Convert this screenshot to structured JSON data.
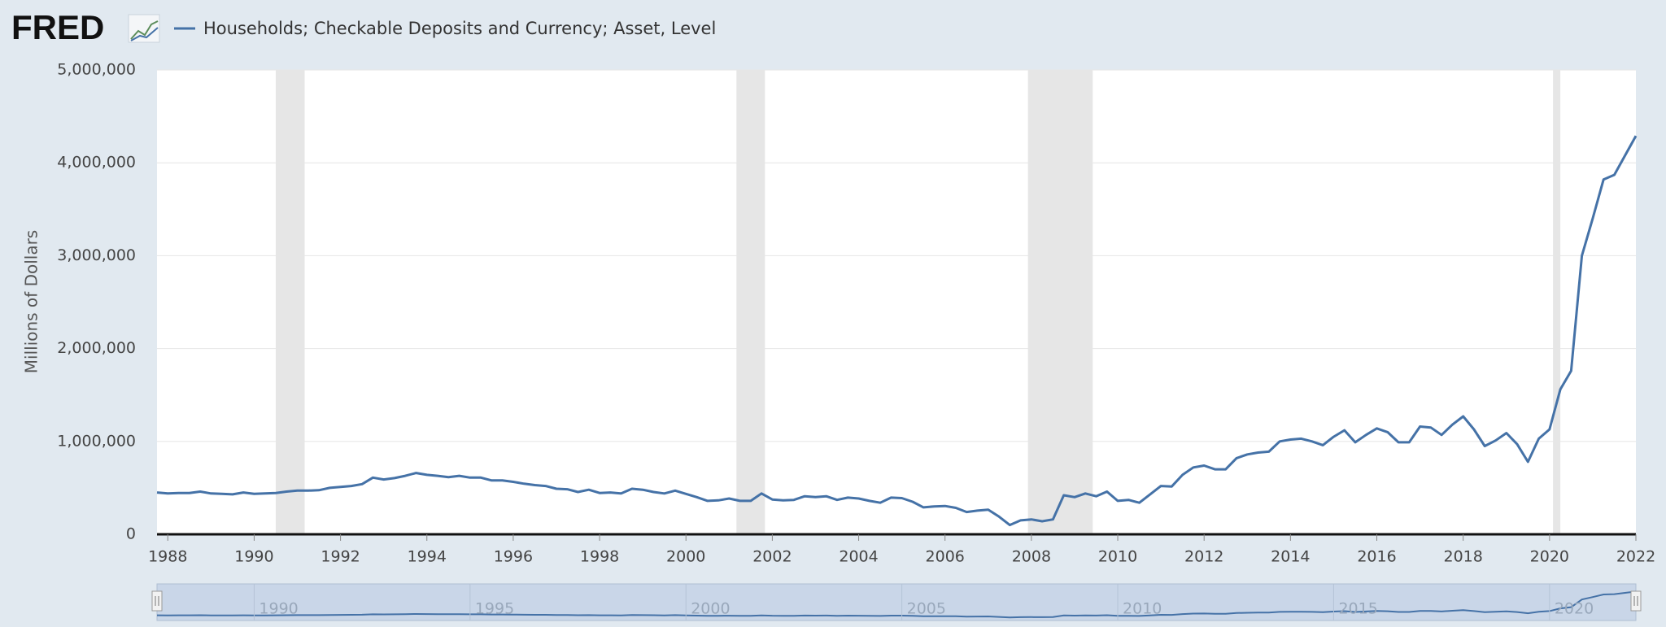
{
  "chart_data": {
    "type": "line",
    "logo": "FRED",
    "y_label": "Millions of Dollars",
    "series": [
      {
        "name": "Households; Checkable Deposits and Currency; Asset, Level",
        "color": "#4572a7",
        "values": [
          450000,
          440000,
          445000,
          445000,
          460000,
          440000,
          435000,
          430000,
          450000,
          435000,
          440000,
          445000,
          460000,
          470000,
          470000,
          475000,
          500000,
          510000,
          520000,
          540000,
          610000,
          590000,
          605000,
          630000,
          660000,
          640000,
          630000,
          615000,
          630000,
          610000,
          610000,
          580000,
          580000,
          565000,
          545000,
          530000,
          520000,
          490000,
          485000,
          455000,
          480000,
          445000,
          450000,
          440000,
          490000,
          480000,
          455000,
          440000,
          470000,
          435000,
          400000,
          360000,
          365000,
          385000,
          360000,
          360000,
          440000,
          375000,
          365000,
          370000,
          410000,
          400000,
          410000,
          370000,
          395000,
          385000,
          360000,
          340000,
          395000,
          390000,
          350000,
          290000,
          300000,
          305000,
          285000,
          240000,
          255000,
          265000,
          190000,
          100000,
          150000,
          160000,
          140000,
          160000,
          420000,
          400000,
          440000,
          410000,
          460000,
          360000,
          370000,
          340000,
          430000,
          520000,
          515000,
          640000,
          720000,
          740000,
          700000,
          700000,
          820000,
          860000,
          880000,
          890000,
          1000000,
          1020000,
          1030000,
          1000000,
          960000,
          1050000,
          1120000,
          990000,
          1070000,
          1140000,
          1100000,
          990000,
          990000,
          1160000,
          1150000,
          1070000,
          1180000,
          1270000,
          1130000,
          950000,
          1010000,
          1090000,
          970000,
          780000,
          1030000,
          1130000,
          1560000,
          1760000,
          3000000,
          3400000,
          3820000,
          3870000,
          4080000,
          4290000
        ]
      }
    ],
    "x": [
      1987.75,
      1988,
      1988.25,
      1988.5,
      1988.75,
      1989,
      1989.25,
      1989.5,
      1989.75,
      1990,
      1990.25,
      1990.5,
      1990.75,
      1991,
      1991.25,
      1991.5,
      1991.75,
      1992,
      1992.25,
      1992.5,
      1992.75,
      1993,
      1993.25,
      1993.5,
      1993.75,
      1994,
      1994.25,
      1994.5,
      1994.75,
      1995,
      1995.25,
      1995.5,
      1995.75,
      1996,
      1996.25,
      1996.5,
      1996.75,
      1997,
      1997.25,
      1997.5,
      1997.75,
      1998,
      1998.25,
      1998.5,
      1998.75,
      1999,
      1999.25,
      1999.5,
      1999.75,
      2000,
      2000.25,
      2000.5,
      2000.75,
      2001,
      2001.25,
      2001.5,
      2001.75,
      2002,
      2002.25,
      2002.5,
      2002.75,
      2003,
      2003.25,
      2003.5,
      2003.75,
      2004,
      2004.25,
      2004.5,
      2004.75,
      2005,
      2005.25,
      2005.5,
      2005.75,
      2006,
      2006.25,
      2006.5,
      2006.75,
      2007,
      2007.25,
      2007.5,
      2007.75,
      2008,
      2008.25,
      2008.5,
      2008.75,
      2009,
      2009.25,
      2009.5,
      2009.75,
      2010,
      2010.25,
      2010.5,
      2010.75,
      2011,
      2011.25,
      2011.5,
      2011.75,
      2012,
      2012.25,
      2012.5,
      2012.75,
      2013,
      2013.25,
      2013.5,
      2013.75,
      2014,
      2014.25,
      2014.5,
      2014.75,
      2015,
      2015.25,
      2015.5,
      2015.75,
      2016,
      2016.25,
      2016.5,
      2016.75,
      2017,
      2017.25,
      2017.5,
      2017.75,
      2018,
      2018.25,
      2018.5,
      2018.75,
      2019,
      2019.25,
      2019.5,
      2019.75,
      2020,
      2020.25,
      2020.5,
      2020.75,
      2021,
      2021.25,
      2021.5,
      2021.75,
      2022
    ],
    "xlim": [
      1987.75,
      2022
    ],
    "xticks": [
      1988,
      1990,
      1992,
      1994,
      1996,
      1998,
      2000,
      2002,
      2004,
      2006,
      2008,
      2010,
      2012,
      2014,
      2016,
      2018,
      2020,
      2022
    ],
    "ylim": [
      0,
      5000000
    ],
    "yticks": [
      0,
      {
        "value": 1000000,
        "label": "1,000,000"
      },
      {
        "value": 2000000,
        "label": "2,000,000"
      },
      {
        "value": 3000000,
        "label": "3,000,000"
      },
      {
        "value": 4000000,
        "label": "4,000,000"
      },
      {
        "value": 5000000,
        "label": "5,000,000"
      }
    ],
    "grid": true,
    "recessions": [
      [
        1990.5,
        1991.17
      ],
      [
        2001.17,
        2001.83
      ],
      [
        2007.92,
        2009.42
      ],
      [
        2020.08,
        2020.25
      ]
    ],
    "recession_color": "#e6e6e6",
    "navigator_ticks": [
      1990,
      1995,
      2000,
      2005,
      2010,
      2015,
      2020
    ]
  }
}
